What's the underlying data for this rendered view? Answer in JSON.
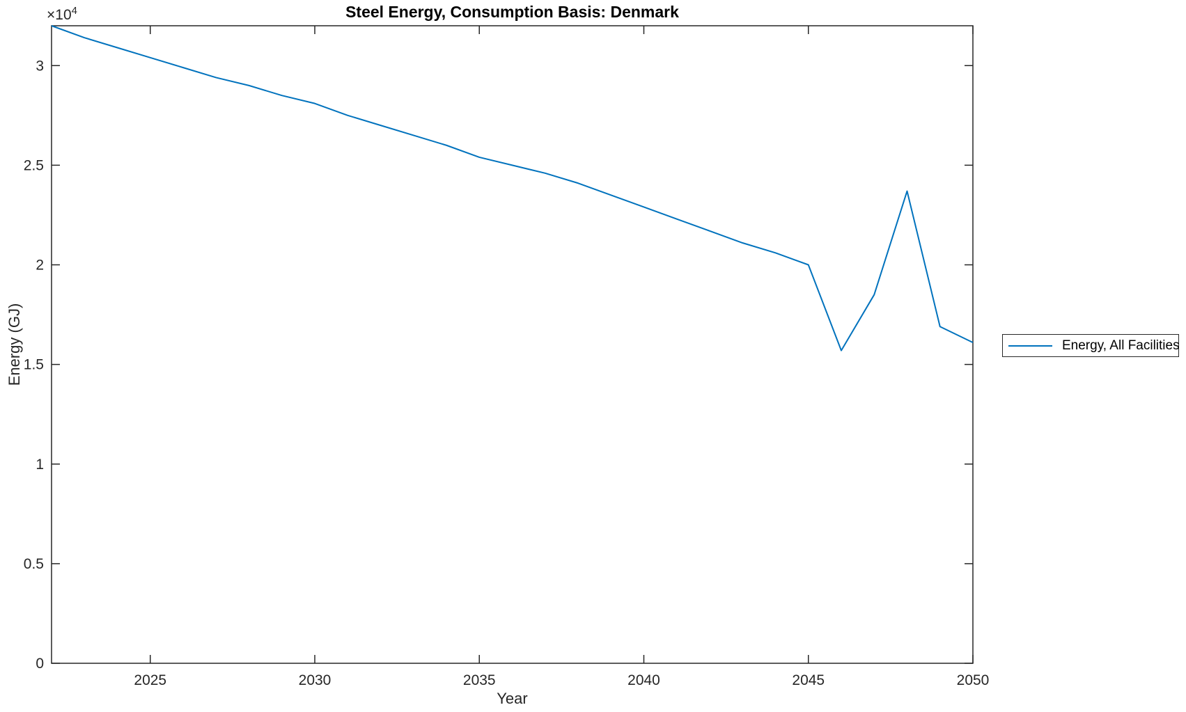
{
  "chart_data": {
    "type": "line",
    "title": "Steel Energy, Consumption Basis: Denmark",
    "xlabel": "Year",
    "ylabel": "Energy (GJ)",
    "y_offset_base": "×10",
    "y_offset_exponent": "4",
    "xlim": [
      2022,
      2050
    ],
    "ylim": [
      0,
      32000
    ],
    "x_ticks": [
      2025,
      2030,
      2035,
      2040,
      2045,
      2050
    ],
    "x_tick_labels": [
      "2025",
      "2030",
      "2035",
      "2040",
      "2045",
      "2050"
    ],
    "y_ticks": [
      0,
      5000,
      10000,
      15000,
      20000,
      25000,
      30000
    ],
    "y_tick_labels": [
      "0",
      "0.5",
      "1",
      "1.5",
      "2",
      "2.5",
      "3"
    ],
    "grid": false,
    "axis_color": "#262626",
    "background_color": "#ffffff",
    "legend_position": "outside-right",
    "series": [
      {
        "name": "Energy, All Facilities",
        "color": "#0072BD",
        "x": [
          2022,
          2023,
          2024,
          2025,
          2026,
          2027,
          2028,
          2029,
          2030,
          2031,
          2032,
          2033,
          2034,
          2035,
          2036,
          2037,
          2038,
          2039,
          2040,
          2041,
          2042,
          2043,
          2044,
          2045,
          2046,
          2047,
          2048,
          2049,
          2050
        ],
        "y": [
          32000,
          31400,
          30900,
          30400,
          29900,
          29400,
          29000,
          28500,
          28100,
          27500,
          27000,
          26500,
          26000,
          25400,
          25000,
          24600,
          24100,
          23500,
          22900,
          22300,
          21700,
          21100,
          20600,
          20000,
          15700,
          18500,
          23700,
          16900,
          16100
        ]
      }
    ]
  },
  "legend": {
    "entries": [
      {
        "label": "Energy, All Facilities",
        "color": "#0072BD"
      }
    ]
  }
}
